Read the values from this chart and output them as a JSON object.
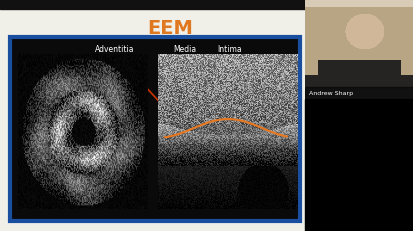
{
  "bg_color": "#000000",
  "slide_bg": "#f0efe8",
  "title_text": "EEM",
  "title_color": "#e07820",
  "title_fontsize": 14,
  "blue_border_color": "#1a4fa0",
  "blue_border_lw": 3,
  "label_adventitia": "Adventitia",
  "label_media": "Media",
  "label_intima": "Intima",
  "label_color": "#ffffff",
  "label_fontsize": 5.5,
  "webcam_name": "Andrew Sharp",
  "webcam_name_color": "#ffffff",
  "webcam_name_fontsize": 4.5,
  "arrow_color": "#cc3300",
  "yellow_box_color": "#e8c010"
}
